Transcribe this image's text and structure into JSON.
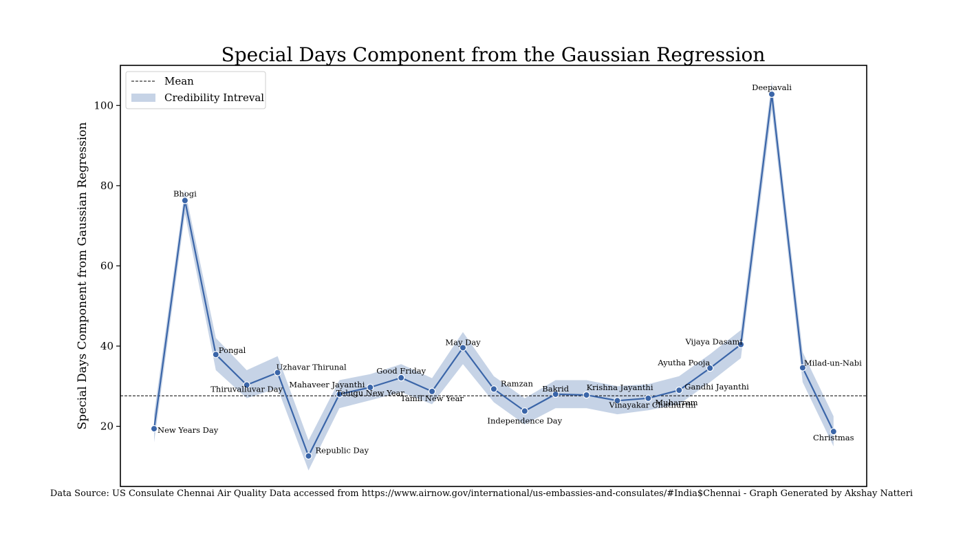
{
  "chart_data": {
    "type": "line",
    "title": "Special Days Component from the Gaussian Regression",
    "xlabel": "",
    "ylabel": "Special Days Component from Gaussian Regression",
    "ylim": [
      5,
      110
    ],
    "yticks": [
      20,
      40,
      60,
      80,
      100
    ],
    "grid": false,
    "legend_position": "top-left",
    "mean": 27.6,
    "colors": {
      "line": "#3a65a8",
      "band": "#c6d3e6",
      "mean": "#000000"
    },
    "series": [
      {
        "points": [
          {
            "label": "New Years Day",
            "value": 19.4,
            "lower": 16,
            "upper": 23
          },
          {
            "label": "Bhogi",
            "value": 76.3,
            "lower": 73,
            "upper": 79
          },
          {
            "label": "Pongal",
            "value": 37.9,
            "lower": 34,
            "upper": 42
          },
          {
            "label": "Thiruvalluvar Day",
            "value": 30.3,
            "lower": 27,
            "upper": 34
          },
          {
            "label": "Uzhavar Thirunal",
            "value": 33.4,
            "lower": 29.5,
            "upper": 37.5
          },
          {
            "label": "Republic Day",
            "value": 12.6,
            "lower": 9,
            "upper": 16.5
          },
          {
            "label": "Mahaveer Jayanthi",
            "value": 28.0,
            "lower": 24.5,
            "upper": 31.5
          },
          {
            "label": "Telugu New Year",
            "value": 29.7,
            "lower": 26.5,
            "upper": 33
          },
          {
            "label": "Good Friday",
            "value": 32.1,
            "lower": 28.5,
            "upper": 35.5
          },
          {
            "label": "Tamil New Year",
            "value": 28.7,
            "lower": 25.5,
            "upper": 32
          },
          {
            "label": "May Day",
            "value": 39.6,
            "lower": 35.5,
            "upper": 43.5
          },
          {
            "label": "Ramzan",
            "value": 29.3,
            "lower": 26,
            "upper": 32.5
          },
          {
            "label": "Independence Day",
            "value": 23.8,
            "lower": 20.5,
            "upper": 27
          },
          {
            "label": "Bakrid",
            "value": 28.0,
            "lower": 24.5,
            "upper": 31.5
          },
          {
            "label": "Krishna Jayanthi",
            "value": 27.8,
            "lower": 24.5,
            "upper": 31.5
          },
          {
            "label": "Vinayakar Chathurthi",
            "value": 26.4,
            "lower": 23,
            "upper": 30
          },
          {
            "label": "Muharram",
            "value": 27.0,
            "lower": 24,
            "upper": 30.5
          },
          {
            "label": "Gandhi Jayanthi",
            "value": 29.0,
            "lower": 25.5,
            "upper": 32.5
          },
          {
            "label": "Ayutha Pooja",
            "value": 34.5,
            "lower": 31,
            "upper": 38
          },
          {
            "label": "Vijaya Dasami",
            "value": 40.4,
            "lower": 37,
            "upper": 44
          },
          {
            "label": "Deepavali",
            "value": 102.8,
            "lower": 99,
            "upper": 106
          },
          {
            "label": "Milad-un-Nabi",
            "value": 34.6,
            "lower": 31,
            "upper": 38.5
          },
          {
            "label": "Christmas",
            "value": 18.7,
            "lower": 15,
            "upper": 22.5
          }
        ]
      }
    ],
    "legend": [
      {
        "label": "Mean",
        "kind": "dashed-line"
      },
      {
        "label": "Credibility Intreval",
        "kind": "band"
      }
    ]
  },
  "footer": "Data Source: US Consulate Chennai Air Quality Data accessed from https://www.airnow.gov/international/us-embassies-and-consulates/#India$Chennai  - Graph Generated by Akshay Natteri"
}
